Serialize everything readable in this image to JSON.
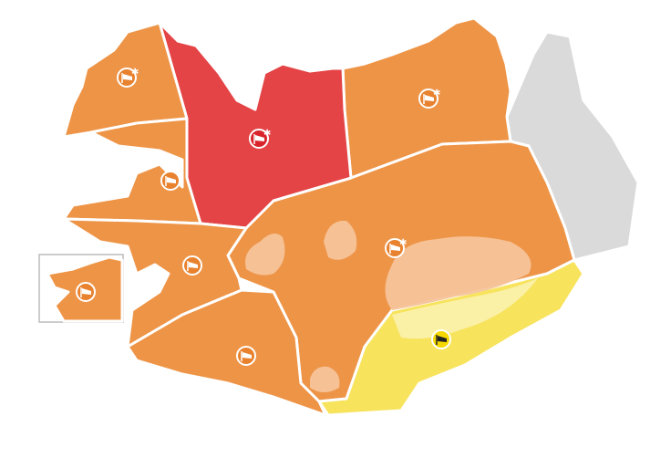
{
  "colors": {
    "orange_warning": "#EE9447",
    "red_warning": "#E44446",
    "yellow_warning": "#F7E35C",
    "no_warning": "#DADADA",
    "glacier": "#F5C39A",
    "border": "#FFFFFF"
  },
  "regions": [
    {
      "id": "westfjords",
      "level": "orange"
    },
    {
      "id": "strandir-northwest",
      "level": "red"
    },
    {
      "id": "breidafjordur",
      "level": "orange"
    },
    {
      "id": "faxafloi",
      "level": "orange"
    },
    {
      "id": "south",
      "level": "orange"
    },
    {
      "id": "central-highlands",
      "level": "orange"
    },
    {
      "id": "northeast",
      "level": "orange"
    },
    {
      "id": "east",
      "level": "none"
    },
    {
      "id": "southeast",
      "level": "yellow"
    },
    {
      "id": "capital-area-inset",
      "level": "orange"
    }
  ],
  "markers": [
    {
      "region": "westfjords",
      "icon": "windsock-snow-icon",
      "level": "orange"
    },
    {
      "region": "strandir-northwest",
      "icon": "windsock-snow-icon",
      "level": "red"
    },
    {
      "region": "breidafjordur",
      "icon": "windsock-icon",
      "level": "orange"
    },
    {
      "region": "faxafloi",
      "icon": "windsock-icon",
      "level": "orange"
    },
    {
      "region": "capital-area-inset",
      "icon": "windsock-icon",
      "level": "orange"
    },
    {
      "region": "south",
      "icon": "windsock-icon",
      "level": "orange"
    },
    {
      "region": "central-highlands",
      "icon": "windsock-snow-icon",
      "level": "orange"
    },
    {
      "region": "northeast",
      "icon": "windsock-snow-icon",
      "level": "orange"
    },
    {
      "region": "southeast",
      "icon": "windsock-icon",
      "level": "yellow"
    }
  ]
}
